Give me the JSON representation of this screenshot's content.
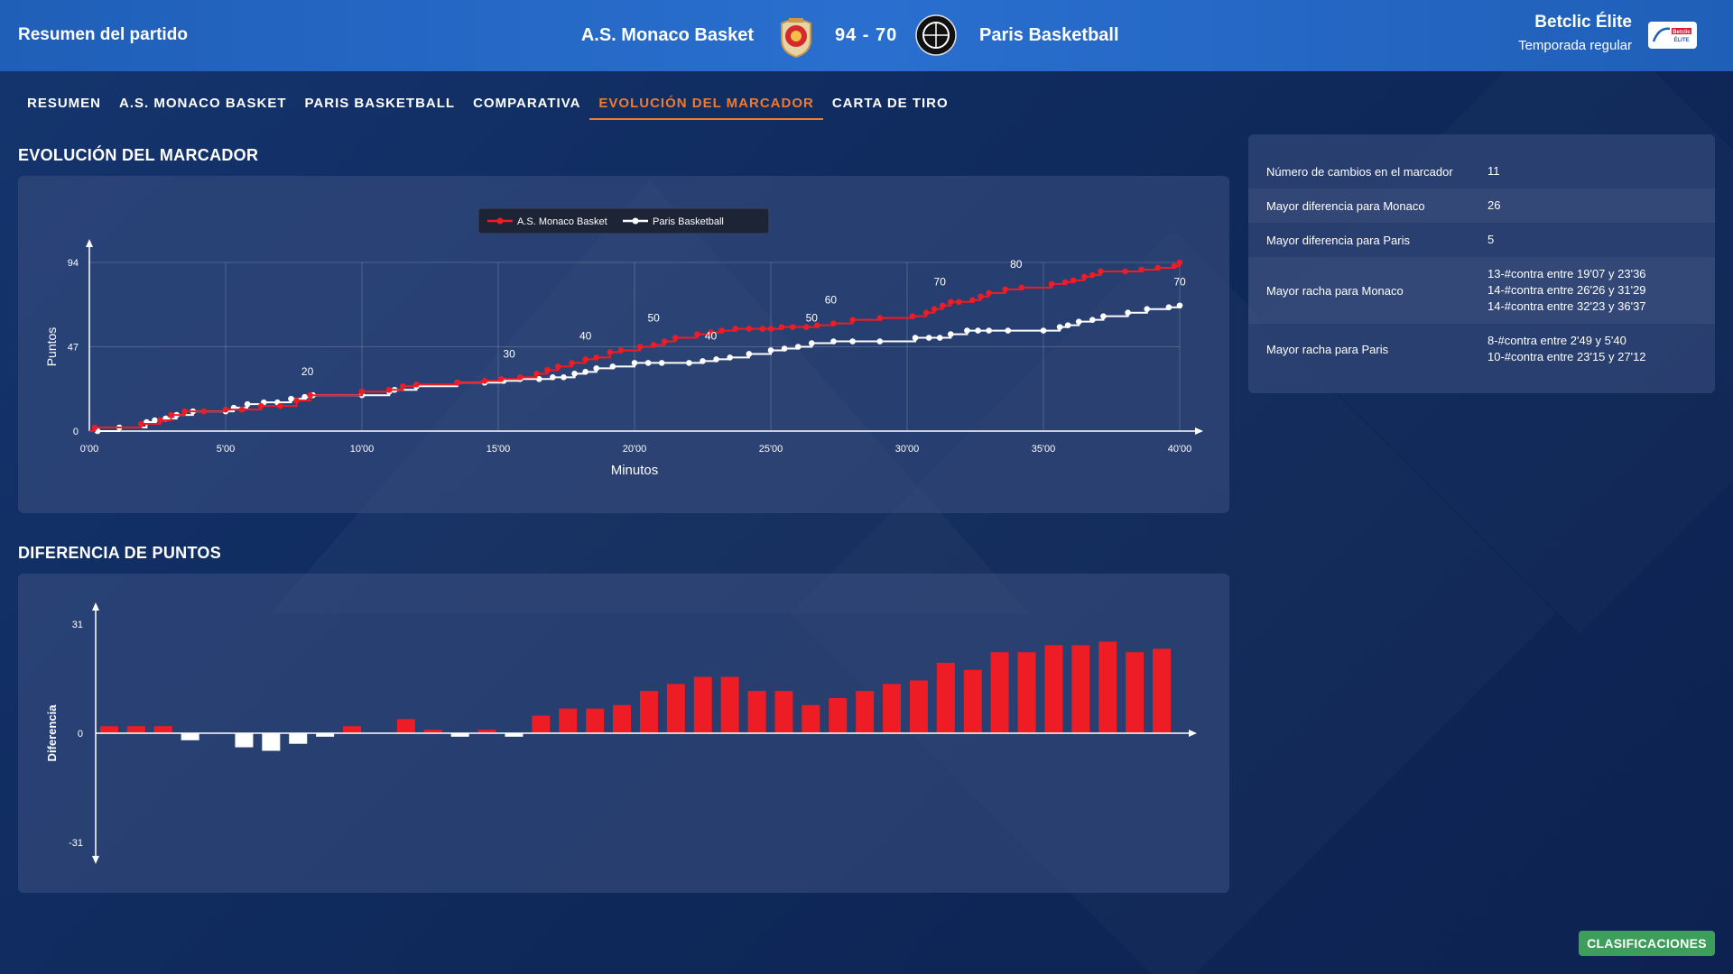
{
  "header": {
    "title": "Resumen del partido",
    "home_team": "A.S. Monaco Basket",
    "score": "94 - 70",
    "away_team": "Paris Basketball",
    "league": "Betclic Élite",
    "phase": "Temporada regular",
    "league_logo_text": "Betclic ÉLITE"
  },
  "tabs": [
    {
      "label": "RESUMEN"
    },
    {
      "label": "A.S. MONACO BASKET"
    },
    {
      "label": "PARIS BASKETBALL"
    },
    {
      "label": "COMPARATIVA"
    },
    {
      "label": "EVOLUCIÓN DEL MARCADOR",
      "active": true
    },
    {
      "label": "CARTA DE TIRO"
    }
  ],
  "sections": {
    "evolution_title": "EVOLUCIÓN DEL MARCADOR",
    "difference_title": "DIFERENCIA DE PUNTOS"
  },
  "stats": [
    {
      "label": "Número de cambios en el marcador",
      "value": [
        "11"
      ]
    },
    {
      "label": "Mayor diferencia para Monaco",
      "value": [
        "26"
      ]
    },
    {
      "label": "Mayor diferencia para Paris",
      "value": [
        "5"
      ]
    },
    {
      "label": "Mayor racha para Monaco",
      "value": [
        "13-#contra entre 19'07 y 23'36",
        "14-#contra entre 26'26 y 31'29",
        "14-#contra entre 32'23 y 36'37"
      ]
    },
    {
      "label": "Mayor racha para Paris",
      "value": [
        "8-#contra entre 2'49 y 5'40",
        "10-#contra entre 23'15 y 27'12"
      ]
    }
  ],
  "button_clasificaciones": "CLASIFICACIONES",
  "colors": {
    "monaco": "#ee1c24",
    "paris": "#ffffff",
    "accent": "#f07a30",
    "button": "#3c9e5a"
  },
  "chart_data": [
    {
      "type": "line",
      "title": "",
      "xlabel": "Minutos",
      "ylabel": "Puntos",
      "xlim": [
        0,
        40
      ],
      "ylim": [
        0,
        94
      ],
      "x_ticks": [
        "0'00",
        "5'00",
        "10'00",
        "15'00",
        "20'00",
        "25'00",
        "30'00",
        "35'00",
        "40'00"
      ],
      "y_ticks": [
        "0",
        "47",
        "94"
      ],
      "legend": "top-center",
      "grid": true,
      "series": [
        {
          "name": "A.S. Monaco Basket",
          "color": "#ee1c24",
          "points": [
            [
              0.2,
              2
            ],
            [
              1.9,
              4
            ],
            [
              2.6,
              6
            ],
            [
              3.0,
              9
            ],
            [
              3.5,
              11
            ],
            [
              4.2,
              11
            ],
            [
              5.0,
              12
            ],
            [
              5.6,
              12
            ],
            [
              6.3,
              14
            ],
            [
              7.0,
              14
            ],
            [
              7.6,
              17
            ],
            [
              8.1,
              20
            ],
            [
              10.0,
              22
            ],
            [
              11.0,
              23
            ],
            [
              11.5,
              25
            ],
            [
              12.0,
              26
            ],
            [
              13.5,
              27
            ],
            [
              14.5,
              28
            ],
            [
              15.1,
              29
            ],
            [
              15.8,
              30
            ],
            [
              16.4,
              32
            ],
            [
              16.8,
              34
            ],
            [
              17.2,
              36
            ],
            [
              17.7,
              38
            ],
            [
              18.2,
              40
            ],
            [
              18.6,
              41
            ],
            [
              19.1,
              44
            ],
            [
              19.5,
              45
            ],
            [
              20.2,
              47
            ],
            [
              20.7,
              48
            ],
            [
              21.1,
              50
            ],
            [
              21.5,
              52
            ],
            [
              22.3,
              54
            ],
            [
              22.8,
              55
            ],
            [
              23.2,
              56
            ],
            [
              23.7,
              57
            ],
            [
              24.2,
              57
            ],
            [
              24.7,
              57
            ],
            [
              25.0,
              57
            ],
            [
              25.4,
              58
            ],
            [
              25.8,
              58
            ],
            [
              26.3,
              58
            ],
            [
              26.7,
              59
            ],
            [
              27.3,
              60
            ],
            [
              28.0,
              62
            ],
            [
              29.0,
              63
            ],
            [
              30.2,
              64
            ],
            [
              30.7,
              66
            ],
            [
              31.0,
              68
            ],
            [
              31.3,
              70
            ],
            [
              31.6,
              72
            ],
            [
              31.9,
              72
            ],
            [
              32.4,
              73
            ],
            [
              32.7,
              75
            ],
            [
              33.0,
              77
            ],
            [
              33.6,
              79
            ],
            [
              34.2,
              80
            ],
            [
              35.3,
              82
            ],
            [
              35.8,
              83
            ],
            [
              36.1,
              84
            ],
            [
              36.5,
              86
            ],
            [
              36.8,
              87
            ],
            [
              37.1,
              89
            ],
            [
              38.0,
              89
            ],
            [
              38.6,
              90
            ],
            [
              39.2,
              91
            ],
            [
              39.8,
              92
            ],
            [
              40.0,
              94
            ]
          ]
        },
        {
          "name": "Paris Basketball",
          "color": "#ffffff",
          "points": [
            [
              0.3,
              0
            ],
            [
              1.1,
              2
            ],
            [
              2.1,
              5
            ],
            [
              2.4,
              6
            ],
            [
              2.8,
              7
            ],
            [
              3.2,
              9
            ],
            [
              3.8,
              11
            ],
            [
              5.0,
              11
            ],
            [
              5.3,
              13
            ],
            [
              5.8,
              15
            ],
            [
              6.4,
              16
            ],
            [
              6.9,
              16
            ],
            [
              7.4,
              18
            ],
            [
              7.9,
              19
            ],
            [
              8.2,
              20
            ],
            [
              10.0,
              20
            ],
            [
              11.0,
              22
            ],
            [
              11.2,
              23
            ],
            [
              12.0,
              25
            ],
            [
              13.5,
              27
            ],
            [
              14.5,
              27
            ],
            [
              15.2,
              28
            ],
            [
              15.8,
              29
            ],
            [
              16.5,
              29
            ],
            [
              17.0,
              30
            ],
            [
              17.4,
              30
            ],
            [
              17.8,
              32
            ],
            [
              18.2,
              33
            ],
            [
              18.6,
              35
            ],
            [
              19.2,
              36
            ],
            [
              20.0,
              38
            ],
            [
              20.5,
              38
            ],
            [
              21.0,
              38
            ],
            [
              22.0,
              38
            ],
            [
              22.5,
              39
            ],
            [
              23.0,
              40
            ],
            [
              23.5,
              41
            ],
            [
              24.2,
              43
            ],
            [
              25.0,
              45
            ],
            [
              25.5,
              46
            ],
            [
              26.0,
              47
            ],
            [
              26.5,
              49
            ],
            [
              27.3,
              50
            ],
            [
              28.0,
              50
            ],
            [
              29.0,
              50
            ],
            [
              30.3,
              52
            ],
            [
              30.8,
              52
            ],
            [
              31.2,
              52
            ],
            [
              31.6,
              54
            ],
            [
              32.2,
              56
            ],
            [
              32.6,
              56
            ],
            [
              33.0,
              56
            ],
            [
              33.7,
              56
            ],
            [
              35.0,
              56
            ],
            [
              35.6,
              58
            ],
            [
              35.9,
              59
            ],
            [
              36.3,
              61
            ],
            [
              36.8,
              62
            ],
            [
              37.2,
              64
            ],
            [
              38.1,
              66
            ],
            [
              38.8,
              68
            ],
            [
              39.6,
              69
            ],
            [
              40.0,
              70
            ]
          ]
        }
      ],
      "annotations": [
        {
          "x": 8.0,
          "y": 20,
          "text": "20"
        },
        {
          "x": 15.4,
          "y": 30,
          "text": "30"
        },
        {
          "x": 18.2,
          "y": 40,
          "text": "40"
        },
        {
          "x": 20.7,
          "y": 50,
          "text": "50"
        },
        {
          "x": 22.8,
          "y": 40,
          "text": "40"
        },
        {
          "x": 26.5,
          "y": 50,
          "text": "50"
        },
        {
          "x": 27.2,
          "y": 60,
          "text": "60"
        },
        {
          "x": 31.2,
          "y": 70,
          "text": "70"
        },
        {
          "x": 34.0,
          "y": 80,
          "text": "80"
        },
        {
          "x": 40.0,
          "y": 70,
          "text": "70"
        }
      ]
    },
    {
      "type": "bar",
      "title": "",
      "xlabel": "",
      "ylabel": "Diferencia",
      "ylim": [
        -31,
        31
      ],
      "y_ticks": [
        "31",
        "0",
        "-31"
      ],
      "grid": false,
      "values": [
        2,
        2,
        2,
        -2,
        0,
        -4,
        -5,
        -3,
        -1,
        2,
        0,
        4,
        1,
        -1,
        1,
        -1,
        5,
        7,
        7,
        8,
        12,
        14,
        16,
        16,
        12,
        12,
        8,
        10,
        12,
        14,
        15,
        20,
        18,
        23,
        23,
        25,
        25,
        26,
        23,
        24
      ]
    }
  ]
}
